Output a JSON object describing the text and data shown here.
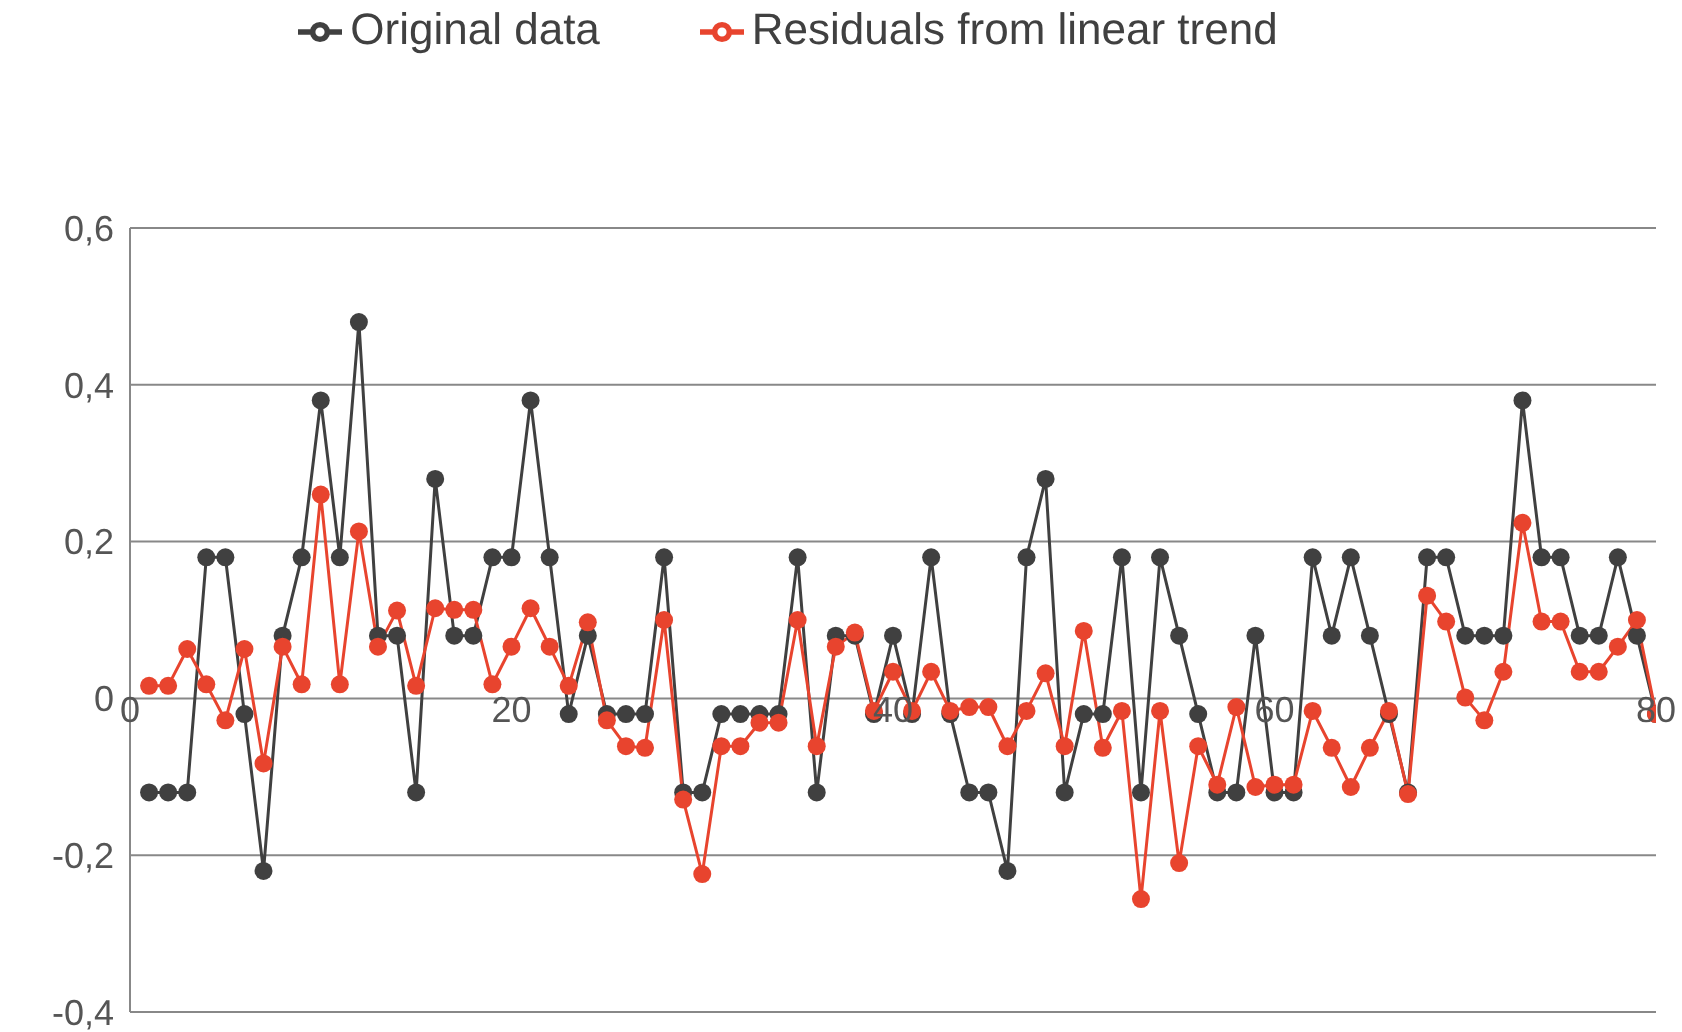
{
  "chart_data": {
    "type": "line",
    "x": [
      1,
      2,
      3,
      4,
      5,
      6,
      7,
      8,
      9,
      10,
      11,
      12,
      13,
      14,
      15,
      16,
      17,
      18,
      19,
      20,
      21,
      22,
      23,
      24,
      25,
      26,
      27,
      28,
      29,
      30,
      31,
      32,
      33,
      34,
      35,
      36,
      37,
      38,
      39,
      40,
      41,
      42,
      43,
      44,
      45,
      46,
      47,
      48,
      49,
      50,
      51,
      52,
      53,
      54,
      55,
      56,
      57,
      58,
      59,
      60,
      61,
      62,
      63,
      64,
      65,
      66,
      67,
      68,
      69,
      70,
      71,
      72,
      73,
      74,
      75,
      76,
      77,
      78,
      79,
      80
    ],
    "series": [
      {
        "name": "Original data",
        "color": "#404040",
        "values": [
          -0.12,
          -0.12,
          -0.12,
          0.18,
          0.18,
          -0.02,
          -0.22,
          0.08,
          0.18,
          0.38,
          0.18,
          0.48,
          0.08,
          0.08,
          -0.12,
          0.28,
          0.08,
          0.08,
          0.18,
          0.18,
          0.38,
          0.18,
          -0.02,
          0.08,
          -0.02,
          -0.02,
          -0.02,
          0.18,
          -0.12,
          -0.12,
          -0.02,
          -0.02,
          -0.02,
          -0.02,
          0.18,
          -0.12,
          0.08,
          0.08,
          -0.02,
          0.08,
          -0.02,
          0.18,
          -0.02,
          -0.12,
          -0.12,
          -0.22,
          0.18,
          0.28,
          -0.12,
          -0.02,
          -0.02,
          0.18,
          -0.12,
          0.18,
          0.08,
          -0.02,
          -0.12,
          -0.12,
          0.08,
          -0.12,
          -0.12,
          0.18,
          0.08,
          0.18,
          0.08,
          -0.02,
          -0.12,
          0.18,
          0.18,
          0.08,
          0.08,
          0.08,
          0.38,
          0.18,
          0.18,
          0.08,
          0.08,
          0.18,
          0.08,
          -0.02
        ]
      },
      {
        "name": "Residuals from linear trend",
        "color": "#e8442e",
        "values": [
          0.016,
          0.016,
          0.063,
          0.018,
          -0.028,
          0.063,
          -0.083,
          0.066,
          0.018,
          0.26,
          0.018,
          0.213,
          0.066,
          0.112,
          0.016,
          0.115,
          0.113,
          0.113,
          0.018,
          0.066,
          0.115,
          0.066,
          0.016,
          0.097,
          -0.028,
          -0.061,
          -0.063,
          0.1,
          -0.129,
          -0.224,
          -0.061,
          -0.061,
          -0.031,
          -0.031,
          0.1,
          -0.061,
          0.066,
          0.084,
          -0.016,
          0.034,
          -0.016,
          0.034,
          -0.016,
          -0.011,
          -0.011,
          -0.061,
          -0.016,
          0.032,
          -0.061,
          0.086,
          -0.063,
          -0.016,
          -0.256,
          -0.016,
          -0.21,
          -0.061,
          -0.11,
          -0.011,
          -0.113,
          -0.11,
          -0.11,
          -0.016,
          -0.063,
          -0.113,
          -0.063,
          -0.016,
          -0.122,
          0.131,
          0.098,
          0.001,
          -0.028,
          0.034,
          0.224,
          0.098,
          0.098,
          0.034,
          0.034,
          0.066,
          0.1,
          -0.02
        ]
      }
    ],
    "xlim": [
      0,
      80
    ],
    "xticks": [
      0,
      20,
      40,
      60,
      80
    ],
    "ylim": [
      -0.4,
      0.6
    ],
    "yticks": [
      {
        "value": -0.4,
        "label": "-0,4"
      },
      {
        "value": -0.2,
        "label": "-0,2"
      },
      {
        "value": 0,
        "label": "0"
      },
      {
        "value": 0.2,
        "label": "0,2"
      },
      {
        "value": 0.4,
        "label": "0,4"
      },
      {
        "value": 0.6,
        "label": "0,6"
      }
    ],
    "grid": "y",
    "legend": "top",
    "marker": "circle",
    "line_style": "solid"
  }
}
